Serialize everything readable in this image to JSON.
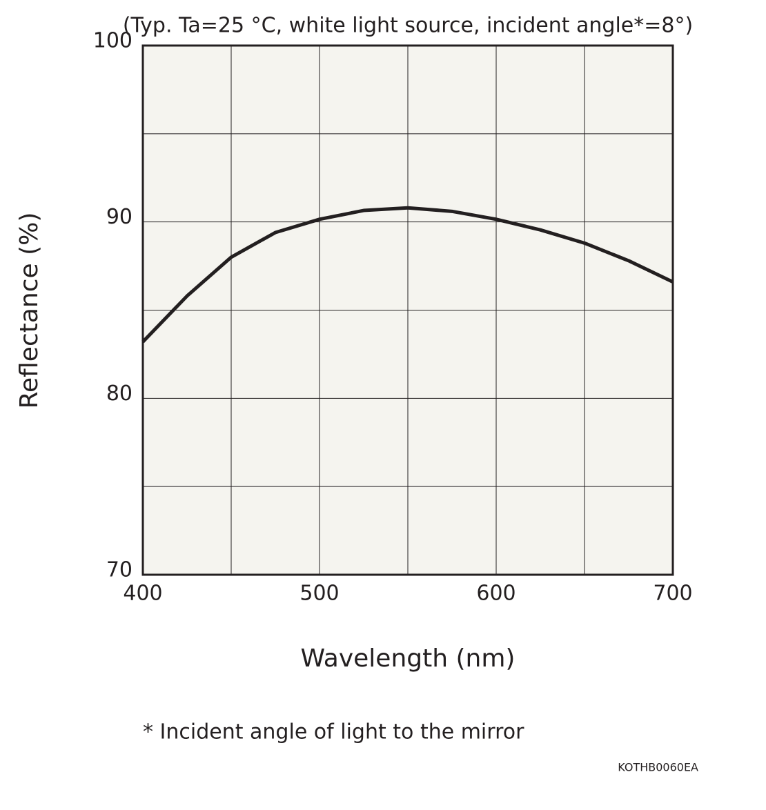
{
  "chart_data": {
    "type": "line",
    "title": "(Typ. Ta=25 °C, white light source, incident angle*=8°)",
    "x_label": "Wavelength (nm)",
    "y_label": "Reflectance (%)",
    "footnote": "* Incident angle of light to the mirror",
    "code": "KOTHB0060EA",
    "x": [
      400,
      425,
      450,
      475,
      500,
      525,
      550,
      575,
      600,
      625,
      650,
      675,
      700
    ],
    "series": [
      {
        "name": "Reflectance",
        "color": "#231f20",
        "values": [
          83.2,
          85.8,
          88.0,
          89.4,
          90.15,
          90.65,
          90.8,
          90.6,
          90.15,
          89.55,
          88.8,
          87.8,
          86.6
        ]
      }
    ],
    "xlim": [
      400,
      700
    ],
    "ylim": [
      70,
      100
    ],
    "xticks": [
      400,
      500,
      600,
      700
    ],
    "yticks": [
      70,
      80,
      90,
      100
    ],
    "xgrid": [
      450,
      500,
      550,
      600,
      650
    ],
    "ygrid": [
      75,
      80,
      85,
      90,
      95
    ],
    "grid": true
  }
}
